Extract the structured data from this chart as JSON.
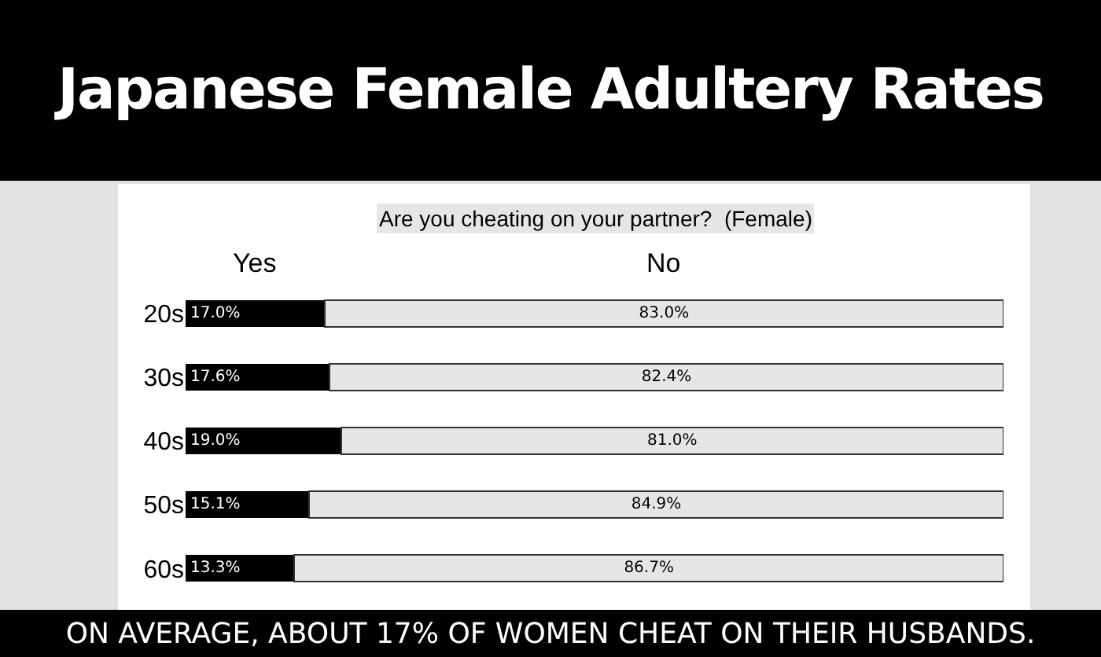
{
  "chart_data": {
    "type": "bar",
    "title": "Japanese Female Adultery Rates",
    "subtitle": "Are you cheating on your partner?  (Female)",
    "orientation": "horizontal",
    "stacked": true,
    "categories": [
      "20s",
      "30s",
      "40s",
      "50s",
      "60s"
    ],
    "xlim": [
      0,
      100
    ],
    "tick_labels": "y",
    "legend": false,
    "series": [
      {
        "name": "Yes",
        "color": "#000000",
        "values": [
          17.0,
          17.6,
          19.0,
          15.1,
          13.3
        ],
        "value_labels": [
          "17.0%",
          "17.6%",
          "19.0%",
          "15.1%",
          "13.3%"
        ]
      },
      {
        "name": "No",
        "color": "#e6e6e6",
        "values": [
          83.0,
          82.4,
          81.0,
          84.9,
          86.7
        ],
        "value_labels": [
          "83.0%",
          "82.4%",
          "81.0%",
          "84.9%",
          "86.7%"
        ]
      }
    ],
    "annotations": [
      "ON AVERAGE, ABOUT 17% OF WOMEN CHEAT ON THEIR HUSBANDS."
    ]
  }
}
